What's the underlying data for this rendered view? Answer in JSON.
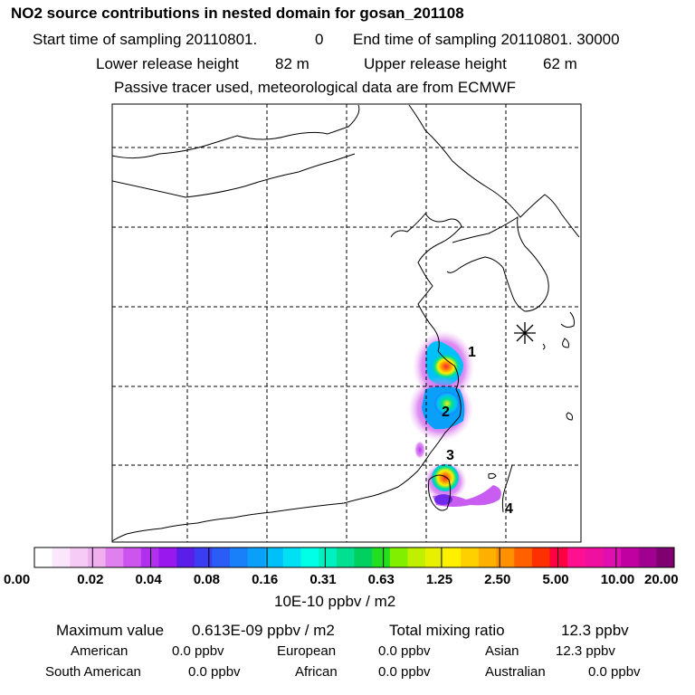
{
  "title": "NO2 source contributions in nested domain for gosan_201108",
  "header": {
    "start_label": "Start time of sampling 20110801.",
    "start_hour": "0",
    "end_label": "End time of sampling 20110801. 30000",
    "lower_label": "Lower release height",
    "lower_value": "82 m",
    "upper_label": "Upper release height",
    "upper_value": "62 m",
    "note": "Passive tracer used, meteorological data are from ECMWF"
  },
  "map": {
    "source_labels": [
      "1",
      "2",
      "3",
      "4"
    ],
    "receptor_marker": "receptor-star"
  },
  "colorbar": {
    "colors": [
      "#ffffff",
      "#fbe6fb",
      "#f6ccf6",
      "#f0b0f0",
      "#e080ee",
      "#cc55ee",
      "#b030ee",
      "#9818ee",
      "#5a1ee8",
      "#3c3cf0",
      "#2a5cf6",
      "#1a80fa",
      "#0aa0fa",
      "#00c0fa",
      "#00e0f4",
      "#00ffe6",
      "#00f0c0",
      "#00e090",
      "#00d060",
      "#20e020",
      "#80f000",
      "#c0f000",
      "#e8f000",
      "#fff000",
      "#ffd000",
      "#ffb000",
      "#ff9000",
      "#ff6000",
      "#ff3000",
      "#ff0040",
      "#ff1090",
      "#f010a0",
      "#e010b0",
      "#c000a0",
      "#a00090",
      "#800070"
    ],
    "tick_labels": [
      "0.00",
      "0.02",
      "0.04",
      "0.08",
      "0.16",
      "0.31",
      "0.63",
      "1.25",
      "2.50",
      "5.00",
      "10.00",
      "20.00"
    ],
    "unit": "10E-10 ppbv / m2"
  },
  "stats": {
    "max_label": "Maximum value",
    "max_value": "0.613E-09 ppbv / m2",
    "total_label": "Total mixing ratio",
    "total_value": "12.3 ppbv",
    "regions": [
      {
        "name": "American",
        "value": "0.0 ppbv"
      },
      {
        "name": "European",
        "value": "0.0 ppbv"
      },
      {
        "name": "Asian",
        "value": "12.3 ppbv"
      },
      {
        "name": "South American",
        "value": "0.0 ppbv"
      },
      {
        "name": "African",
        "value": "0.0 ppbv"
      },
      {
        "name": "Australian",
        "value": "0.0 ppbv"
      }
    ]
  }
}
